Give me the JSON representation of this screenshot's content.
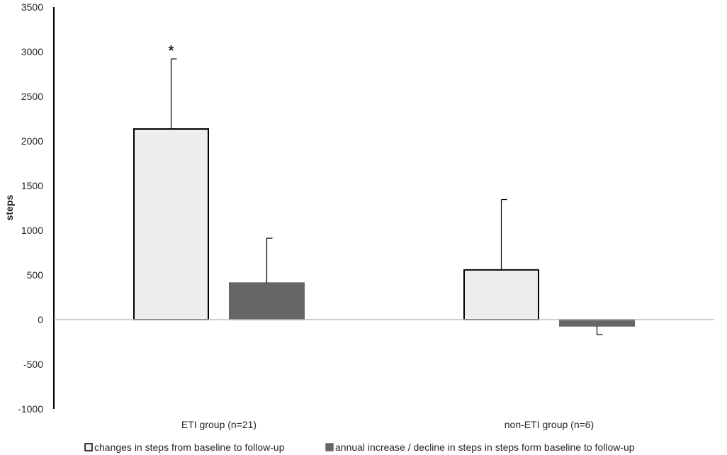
{
  "chart_data": {
    "type": "bar",
    "title": "",
    "ylabel": "steps",
    "xlabel": "",
    "ylim": [
      -1000,
      3500
    ],
    "yticks": [
      3500,
      3000,
      2500,
      2000,
      1500,
      1000,
      500,
      0,
      -500,
      -1000
    ],
    "categories": [
      "ETI group (n=21)",
      "non-ETI group (n=6)"
    ],
    "series": [
      {
        "name": "changes in steps from baseline to follow-up",
        "fill": "#eeeeee",
        "stroke": "#000000",
        "values": [
          2135,
          557
        ],
        "error_plus": [
          785,
          788
        ]
      },
      {
        "name": "annual increase / decline in steps in steps form baseline to follow-up",
        "fill": "#666666",
        "stroke": "#666666",
        "values": [
          410,
          -70
        ],
        "error_plus": [
          502,
          -100
        ]
      }
    ],
    "annotations": [
      {
        "text": "*",
        "category_index": 0,
        "series_index": 0
      }
    ],
    "grid": false,
    "legend_position": "bottom"
  }
}
